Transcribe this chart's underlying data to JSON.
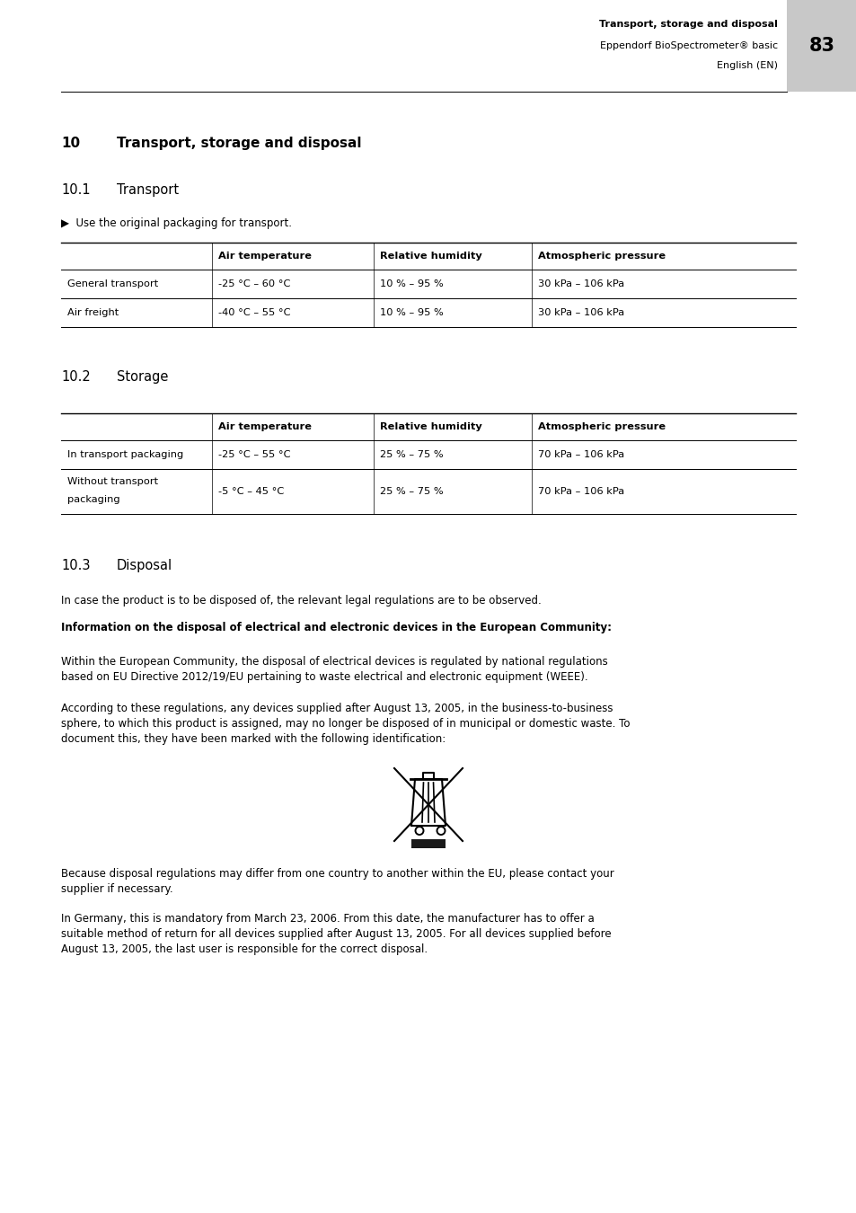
{
  "page_width": 9.54,
  "page_height": 13.5,
  "bg_color": "#ffffff",
  "header": {
    "right_text_line1": "Transport, storage and disposal",
    "right_text_line2": "Eppendorf BioSpectrometer® basic",
    "right_text_line3": "English (EN)",
    "page_number": "83",
    "page_number_bg": "#c8c8c8"
  },
  "section10_num": "10",
  "section10_text": "Transport, storage and disposal",
  "section101_num": "10.1",
  "section101_text": "Transport",
  "section101_bullet": "▶  Use the original packaging for transport.",
  "transport_table": {
    "headers": [
      "",
      "Air temperature",
      "Relative humidity",
      "Atmospheric pressure"
    ],
    "rows": [
      [
        "General transport",
        "-25 °C – 60 °C",
        "10 % – 95 %",
        "30 kPa – 106 kPa"
      ],
      [
        "Air freight",
        "-40 °C – 55 °C",
        "10 % – 95 %",
        "30 kPa – 106 kPa"
      ]
    ]
  },
  "section102_num": "10.2",
  "section102_text": "Storage",
  "storage_table": {
    "headers": [
      "",
      "Air temperature",
      "Relative humidity",
      "Atmospheric pressure"
    ],
    "rows": [
      [
        "In transport packaging",
        "-25 °C – 55 °C",
        "25 % – 75 %",
        "70 kPa – 106 kPa"
      ],
      [
        "Without transport\npackaging",
        "-5 °C – 45 °C",
        "25 % – 75 %",
        "70 kPa – 106 kPa"
      ]
    ]
  },
  "section103_num": "10.3",
  "section103_text": "Disposal",
  "disposal_para1": "In case the product is to be disposed of, the relevant legal regulations are to be observed.",
  "disposal_bold": "Information on the disposal of electrical and electronic devices in the European Community:",
  "disposal_para2": "Within the European Community, the disposal of electrical devices is regulated by national regulations\nbased on EU Directive 2012/19/EU pertaining to waste electrical and electronic equipment (WEEE).",
  "disposal_para3": "According to these regulations, any devices supplied after August 13, 2005, in the business-to-business\nsphere, to which this product is assigned, may no longer be disposed of in municipal or domestic waste. To\ndocument this, they have been marked with the following identification:",
  "disposal_para4": "Because disposal regulations may differ from one country to another within the EU, please contact your\nsupplier if necessary.",
  "disposal_para5": "In Germany, this is mandatory from March 23, 2006. From this date, the manufacturer has to offer a\nsuitable method of return for all devices supplied after August 13, 2005. For all devices supplied before\nAugust 13, 2005, the last user is responsible for the correct disposal."
}
